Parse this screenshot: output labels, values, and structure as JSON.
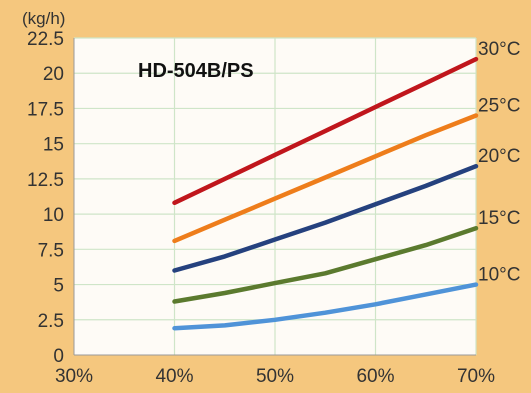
{
  "colors": {
    "background": "#F5C77E",
    "plot_area": "#FEFBF6",
    "grid": "#CFE5C8",
    "axis_text": "#333333"
  },
  "chart_data": {
    "type": "line",
    "title": "HD-504B/PS",
    "ylabel": "(kg/h)",
    "xlabel": "",
    "x_ticks": [
      "30%",
      "40%",
      "50%",
      "60%",
      "70%"
    ],
    "y_ticks": [
      "0",
      "2.5",
      "5",
      "7.5",
      "10",
      "12.5",
      "15",
      "17.5",
      "20",
      "22.5"
    ],
    "xlim": [
      30,
      70
    ],
    "ylim": [
      0,
      22.5
    ],
    "grid": true,
    "x": [
      40,
      45,
      50,
      55,
      60,
      65,
      70
    ],
    "series": [
      {
        "name": "30°C",
        "color": "#C0161C",
        "values": [
          10.8,
          12.5,
          14.2,
          15.9,
          17.6,
          19.3,
          21.0
        ]
      },
      {
        "name": "25°C",
        "color": "#EE7D1B",
        "values": [
          8.1,
          9.6,
          11.1,
          12.6,
          14.1,
          15.6,
          17.0
        ]
      },
      {
        "name": "20°C",
        "color": "#25417E",
        "values": [
          6.0,
          7.0,
          8.2,
          9.4,
          10.7,
          12.0,
          13.4
        ]
      },
      {
        "name": "15°C",
        "color": "#5B7A2E",
        "values": [
          3.8,
          4.4,
          5.1,
          5.8,
          6.8,
          7.8,
          9.0
        ]
      },
      {
        "name": "10°C",
        "color": "#4F93D8",
        "values": [
          1.9,
          2.1,
          2.5,
          3.0,
          3.6,
          4.3,
          5.0
        ]
      }
    ]
  }
}
